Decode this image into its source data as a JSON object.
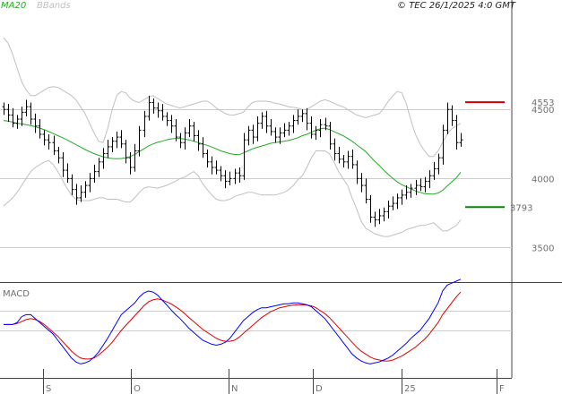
{
  "header": {
    "ma_label": "MA20",
    "bands_label": "BBands",
    "copyright": "© TEC 26/1/2025 4:0 GMT"
  },
  "colors": {
    "price": "#000000",
    "ma": "#22aa22",
    "bands": "#c0c0c0",
    "macd": "#0000ff",
    "signal": "#dd0000",
    "resistance": "#cc0000",
    "support": "#008800",
    "grid": "#cccccc",
    "text": "#6f6f6f"
  },
  "chart_data": {
    "type": "line",
    "price_axis": {
      "min": 3250,
      "max": 5150,
      "ticks": [
        3500,
        4000,
        4500
      ]
    },
    "price_tick_labels": [
      "3500",
      "4000",
      "4500"
    ],
    "levels": {
      "resistance": {
        "value": 4553,
        "label": "4553"
      },
      "support": {
        "value": 3793,
        "label": "3793"
      }
    },
    "months": [
      "S",
      "O",
      "N",
      "D",
      "25",
      "F"
    ],
    "closes": [
      4500,
      4460,
      4400,
      4430,
      4480,
      4520,
      4430,
      4380,
      4320,
      4280,
      4260,
      4200,
      4150,
      4060,
      4000,
      3920,
      3860,
      3900,
      3950,
      4000,
      4050,
      4120,
      4180,
      4230,
      4270,
      4300,
      4250,
      4150,
      4080,
      4200,
      4350,
      4450,
      4550,
      4510,
      4490,
      4450,
      4420,
      4380,
      4300,
      4260,
      4330,
      4380,
      4310,
      4250,
      4180,
      4120,
      4080,
      4060,
      4020,
      3980,
      4000,
      4040,
      4020,
      4280,
      4350,
      4300,
      4400,
      4450,
      4380,
      4340,
      4300,
      4330,
      4350,
      4380,
      4420,
      4450,
      4470,
      4400,
      4320,
      4350,
      4390,
      4380,
      4250,
      4180,
      4140,
      4120,
      4160,
      4100,
      4000,
      3950,
      3850,
      3720,
      3700,
      3730,
      3760,
      3800,
      3820,
      3860,
      3880,
      3900,
      3930,
      3950,
      3940,
      3980,
      4020,
      4070,
      4150,
      4350,
      4500,
      4420,
      4260,
      4280
    ],
    "ma20": [
      4420,
      4415,
      4408,
      4400,
      4395,
      4390,
      4383,
      4375,
      4365,
      4353,
      4340,
      4325,
      4310,
      4295,
      4280,
      4263,
      4245,
      4228,
      4210,
      4195,
      4180,
      4168,
      4157,
      4150,
      4145,
      4143,
      4145,
      4150,
      4160,
      4175,
      4195,
      4215,
      4235,
      4250,
      4262,
      4270,
      4280,
      4287,
      4290,
      4290,
      4285,
      4280,
      4270,
      4260,
      4250,
      4240,
      4228,
      4215,
      4200,
      4190,
      4180,
      4175,
      4172,
      4185,
      4200,
      4215,
      4225,
      4235,
      4245,
      4255,
      4260,
      4265,
      4270,
      4275,
      4285,
      4295,
      4310,
      4320,
      4335,
      4350,
      4360,
      4365,
      4355,
      4340,
      4325,
      4310,
      4290,
      4270,
      4245,
      4220,
      4195,
      4160,
      4125,
      4095,
      4060,
      4030,
      4000,
      3975,
      3955,
      3940,
      3925,
      3910,
      3900,
      3890,
      3888,
      3887,
      3895,
      3915,
      3945,
      3975,
      4005,
      4045
    ],
    "bb_upper": [
      5020,
      4980,
      4900,
      4800,
      4700,
      4640,
      4600,
      4600,
      4620,
      4640,
      4660,
      4665,
      4660,
      4640,
      4620,
      4600,
      4570,
      4520,
      4470,
      4400,
      4330,
      4270,
      4260,
      4360,
      4500,
      4600,
      4630,
      4620,
      4580,
      4560,
      4550,
      4570,
      4590,
      4600,
      4580,
      4560,
      4540,
      4530,
      4520,
      4510,
      4520,
      4530,
      4540,
      4550,
      4560,
      4560,
      4540,
      4510,
      4490,
      4470,
      4460,
      4460,
      4470,
      4480,
      4520,
      4550,
      4560,
      4560,
      4560,
      4555,
      4545,
      4540,
      4530,
      4520,
      4515,
      4510,
      4500,
      4500,
      4520,
      4540,
      4560,
      4570,
      4560,
      4545,
      4530,
      4520,
      4500,
      4480,
      4460,
      4450,
      4440,
      4450,
      4460,
      4470,
      4510,
      4560,
      4600,
      4630,
      4620,
      4540,
      4420,
      4320,
      4250,
      4200,
      4160,
      4160,
      4200,
      4260,
      4320,
      4360,
      4380,
      4400
    ],
    "bb_lower": [
      3800,
      3830,
      3860,
      3900,
      3950,
      4000,
      4050,
      4080,
      4100,
      4120,
      4130,
      4100,
      4050,
      3990,
      3930,
      3880,
      3850,
      3840,
      3840,
      3840,
      3850,
      3860,
      3860,
      3850,
      3850,
      3850,
      3840,
      3830,
      3830,
      3860,
      3900,
      3930,
      3940,
      3935,
      3930,
      3940,
      3950,
      3965,
      3980,
      4000,
      4010,
      4030,
      4050,
      4020,
      3960,
      3920,
      3880,
      3850,
      3840,
      3840,
      3850,
      3870,
      3880,
      3890,
      3900,
      3900,
      3890,
      3880,
      3880,
      3880,
      3880,
      3890,
      3900,
      3920,
      3950,
      3990,
      4020,
      4080,
      4150,
      4200,
      4200,
      4200,
      4180,
      4120,
      4050,
      4000,
      3950,
      3860,
      3780,
      3690,
      3640,
      3620,
      3600,
      3590,
      3580,
      3580,
      3590,
      3600,
      3610,
      3630,
      3640,
      3650,
      3660,
      3660,
      3670,
      3680,
      3650,
      3620,
      3620,
      3640,
      3660,
      3700
    ],
    "macd": [
      -70,
      -70,
      -70,
      -60,
      -30,
      -20,
      -20,
      -40,
      -60,
      -80,
      -100,
      -120,
      -150,
      -180,
      -210,
      -240,
      -260,
      -270,
      -265,
      -255,
      -235,
      -210,
      -175,
      -140,
      -100,
      -60,
      -20,
      0,
      20,
      40,
      70,
      90,
      100,
      95,
      80,
      55,
      30,
      5,
      -20,
      -40,
      -65,
      -90,
      -110,
      -130,
      -150,
      -160,
      -170,
      -175,
      -170,
      -160,
      -140,
      -110,
      -80,
      -50,
      -30,
      -10,
      5,
      15,
      15,
      20,
      25,
      30,
      35,
      35,
      40,
      40,
      35,
      30,
      20,
      0,
      -20,
      -40,
      -70,
      -100,
      -130,
      -160,
      -190,
      -220,
      -240,
      -255,
      -265,
      -270,
      -265,
      -260,
      -250,
      -240,
      -225,
      -205,
      -185,
      -165,
      -140,
      -120,
      -100,
      -70,
      -40,
      0,
      40,
      100,
      130,
      140,
      150,
      160
    ],
    "macd_signal": [
      -70,
      -70,
      -70,
      -65,
      -55,
      -45,
      -40,
      -45,
      -55,
      -70,
      -90,
      -110,
      -130,
      -155,
      -180,
      -205,
      -225,
      -240,
      -245,
      -245,
      -240,
      -225,
      -205,
      -185,
      -160,
      -130,
      -100,
      -75,
      -50,
      -25,
      0,
      25,
      45,
      55,
      60,
      55,
      45,
      35,
      20,
      5,
      -15,
      -35,
      -55,
      -75,
      -95,
      -110,
      -125,
      -140,
      -150,
      -155,
      -155,
      -150,
      -135,
      -115,
      -95,
      -75,
      -55,
      -35,
      -20,
      -5,
      5,
      15,
      20,
      25,
      28,
      30,
      30,
      28,
      25,
      15,
      0,
      -15,
      -35,
      -60,
      -85,
      -110,
      -135,
      -160,
      -185,
      -205,
      -220,
      -235,
      -245,
      -250,
      -255,
      -255,
      -250,
      -240,
      -230,
      -215,
      -200,
      -185,
      -165,
      -145,
      -120,
      -90,
      -60,
      -20,
      10,
      40,
      70,
      95
    ]
  }
}
